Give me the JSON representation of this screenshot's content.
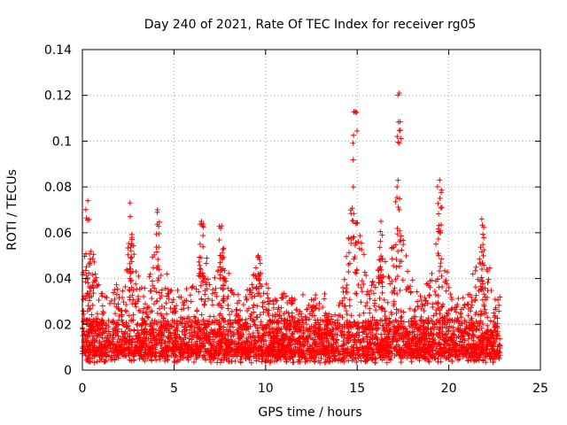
{
  "chart_data": {
    "type": "scatter",
    "title": "Day 240 of 2021, Rate Of TEC Index for receiver rg05",
    "xlabel": "GPS time / hours",
    "ylabel": "ROTI / TECUs",
    "xlim": [
      0,
      25
    ],
    "ylim": [
      0,
      0.14
    ],
    "xticks": [
      "0",
      "5",
      "10",
      "15",
      "20",
      "25"
    ],
    "yticks": [
      "0",
      "0.02",
      "0.04",
      "0.06",
      "0.08",
      "0.1",
      "0.12",
      "0.14"
    ],
    "grid": true,
    "marker": "plus",
    "color": "#ff0000",
    "series": [
      {
        "x_range_hours": [
          0,
          22.8
        ],
        "baseline_roti": [
          0.003,
          0.03
        ],
        "peaks": [
          {
            "x": 0.3,
            "y": 0.074
          },
          {
            "x": 2.6,
            "y": 0.073
          },
          {
            "x": 4.1,
            "y": 0.07
          },
          {
            "x": 6.5,
            "y": 0.065
          },
          {
            "x": 7.6,
            "y": 0.063
          },
          {
            "x": 9.6,
            "y": 0.05
          },
          {
            "x": 14.9,
            "y": 0.113
          },
          {
            "x": 16.3,
            "y": 0.065
          },
          {
            "x": 17.3,
            "y": 0.121
          },
          {
            "x": 19.5,
            "y": 0.083
          },
          {
            "x": 21.8,
            "y": 0.066
          }
        ]
      }
    ]
  }
}
